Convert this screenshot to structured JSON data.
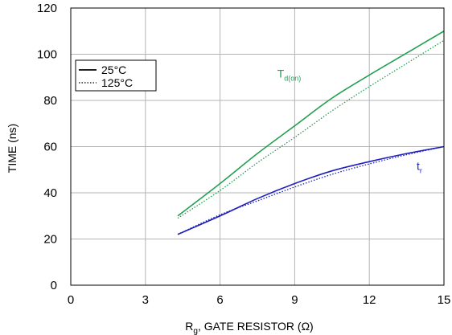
{
  "chart_data": {
    "type": "line",
    "xlabel": "R_g, GATE RESISTOR (Ω)",
    "xlabel_parts": {
      "main": "R",
      "sub": "g",
      "rest": ", GATE RESISTOR (Ω)"
    },
    "ylabel": "TIME (ns)",
    "xlim": [
      0,
      15
    ],
    "ylim": [
      0,
      120
    ],
    "xticks": [
      0,
      3,
      6,
      9,
      12,
      15
    ],
    "yticks": [
      0,
      20,
      40,
      60,
      80,
      100,
      120
    ],
    "grid": true,
    "legend": {
      "placement": "upper-left",
      "entries": [
        {
          "label": "25°C",
          "style": "solid"
        },
        {
          "label": "125°C",
          "style": "dotted"
        }
      ]
    },
    "series": [
      {
        "name": "T_d(on)",
        "temperature": "25°C",
        "color": "#22a050",
        "style": "solid",
        "x": [
          4.3,
          6,
          7.5,
          9,
          10.5,
          12,
          13.5,
          15
        ],
        "y": [
          30,
          44,
          57,
          69,
          81,
          91,
          100.5,
          110
        ]
      },
      {
        "name": "T_d(on)",
        "temperature": "125°C",
        "color": "#22a050",
        "style": "dotted",
        "x": [
          4.3,
          6,
          7.5,
          9,
          10.5,
          12,
          13.5,
          15
        ],
        "y": [
          29,
          41,
          53,
          64,
          75.5,
          86,
          96,
          106
        ]
      },
      {
        "name": "t_r",
        "temperature": "25°C",
        "color": "#1f1fbf",
        "style": "solid",
        "x": [
          4.3,
          6,
          7.5,
          9,
          10.5,
          12,
          13.5,
          15
        ],
        "y": [
          22,
          30,
          37.5,
          44,
          49.5,
          53.5,
          57,
          60
        ]
      },
      {
        "name": "t_r",
        "temperature": "125°C",
        "color": "#1f1fbf",
        "style": "dotted",
        "x": [
          4.3,
          6,
          7.5,
          9,
          10.5,
          12,
          13.5,
          15
        ],
        "y": [
          22,
          30.5,
          36.5,
          42.5,
          48,
          52.5,
          56.5,
          60
        ]
      }
    ],
    "annotations": [
      {
        "main": "T",
        "sub": "d(on)",
        "color": "#22a050",
        "x": 8.3,
        "y": 90
      },
      {
        "main": "t",
        "sub": "r",
        "color": "#1f1fbf",
        "x": 13.9,
        "y": 50
      }
    ]
  }
}
